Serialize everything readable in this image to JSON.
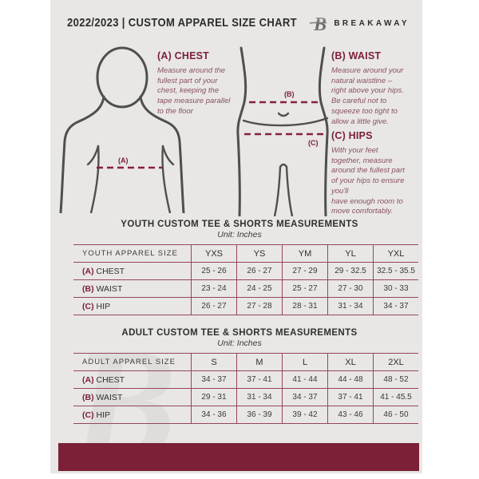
{
  "colors": {
    "canvas_bg": "#e8e7e5",
    "accent_maroon": "#7d2138",
    "table_border": "#96455a",
    "instruction_text": "#8a5063",
    "dark_text": "#2f2f2f",
    "figure_stroke": "#4f4f4f",
    "footer_bar": "#7b2036",
    "watermark": "#dedddb"
  },
  "header": {
    "title": "2022/2023  |  CUSTOM APPAREL SIZE CHART",
    "brand": "BREAKAWAY",
    "logo_letter": "B"
  },
  "watermark_letter": "B",
  "figure_labels": {
    "chest": "(A)",
    "waist": "(B)",
    "hips": "(C)"
  },
  "instructions": {
    "chest": {
      "heading": "(A) CHEST",
      "body": "Measure around the\nfullest part of your\nchest, keeping the\ntape measure parallel\nto the floor"
    },
    "waist": {
      "heading": "(B) WAIST",
      "body": "Measure around your\nnatural waistline –\nright above your hips.\nBe careful not to\nsqueeze too tight to\nallow a little give."
    },
    "hips": {
      "heading": "(C) HIPS",
      "body": "With your feet\ntogether, measure\naround the fullest part\nof your hips to ensure\nyou'll\nhave enough room to\nmove comfortably."
    }
  },
  "tables": {
    "youth": {
      "title": "YOUTH CUSTOM TEE & SHORTS MEASUREMENTS",
      "unit": "Unit: Inches",
      "size_label": "YOUTH APPAREL SIZE",
      "sizes": [
        "YXS",
        "YS",
        "YM",
        "YL",
        "YXL"
      ],
      "rows": [
        {
          "prefix": "(A)",
          "label": "CHEST",
          "values": [
            "25 - 26",
            "26 - 27",
            "27 - 29",
            "29 - 32.5",
            "32.5 - 35.5"
          ]
        },
        {
          "prefix": "(B)",
          "label": "WAIST",
          "values": [
            "23 - 24",
            "24 - 25",
            "25 - 27",
            "27 - 30",
            "30 - 33"
          ]
        },
        {
          "prefix": "(C)",
          "label": "HIP",
          "values": [
            "26 - 27",
            "27 - 28",
            "28 - 31",
            "31 - 34",
            "34 - 37"
          ]
        }
      ]
    },
    "adult": {
      "title": "ADULT CUSTOM TEE & SHORTS MEASUREMENTS",
      "unit": "Unit: Inches",
      "size_label": "ADULT APPAREL SIZE",
      "sizes": [
        "S",
        "M",
        "L",
        "XL",
        "2XL"
      ],
      "rows": [
        {
          "prefix": "(A)",
          "label": "CHEST",
          "values": [
            "34 - 37",
            "37 - 41",
            "41 - 44",
            "44 - 48",
            "48 - 52"
          ]
        },
        {
          "prefix": "(B)",
          "label": "WAIST",
          "values": [
            "29 - 31",
            "31 - 34",
            "34 - 37",
            "37 - 41",
            "41 - 45.5"
          ]
        },
        {
          "prefix": "(C)",
          "label": "HIP",
          "values": [
            "34 - 36",
            "36 - 39",
            "39 - 42",
            "43 - 46",
            "46 - 50"
          ]
        }
      ]
    }
  }
}
